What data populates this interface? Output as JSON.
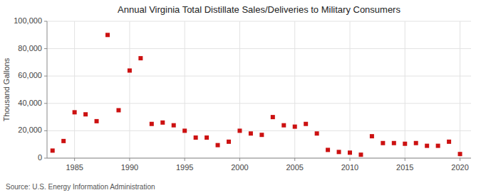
{
  "chart_data": {
    "type": "scatter",
    "title": "Annual Virginia Total Distillate Sales/Deliveries to Military Consumers",
    "y_label": "Thousand Gallons",
    "annotations": [
      "Source: U.S. Energy Information Administration"
    ],
    "x": [
      1983,
      1984,
      1985,
      1986,
      1987,
      1988,
      1989,
      1990,
      1991,
      1992,
      1993,
      1994,
      1995,
      1996,
      1997,
      1998,
      1999,
      2000,
      2001,
      2002,
      2003,
      2004,
      2005,
      2006,
      2007,
      2008,
      2009,
      2010,
      2011,
      2012,
      2013,
      2014,
      2015,
      2016,
      2017,
      2018,
      2019,
      2020
    ],
    "values": [
      5500,
      12500,
      33500,
      32000,
      27000,
      90000,
      35000,
      64000,
      73000,
      25000,
      26000,
      24000,
      20000,
      15000,
      15000,
      9500,
      12000,
      20000,
      18000,
      17000,
      30000,
      24000,
      23000,
      25000,
      18000,
      6000,
      4500,
      4000,
      2500,
      16000,
      11000,
      11000,
      10500,
      11000,
      9000,
      9000,
      12000,
      3000
    ],
    "color": "#cc1111",
    "marker": "square",
    "xlim": [
      1982.5,
      2021
    ],
    "ylim": [
      0,
      100000
    ],
    "xticks": [
      1985,
      1990,
      1995,
      2000,
      2005,
      2010,
      2015,
      2020
    ],
    "yticks": [
      0,
      {
        "value": 20000,
        "label": "20,000"
      },
      {
        "value": 40000,
        "label": "40,000"
      },
      {
        "value": 60000,
        "label": "60,000"
      },
      {
        "value": 80000,
        "label": "80,000"
      },
      {
        "value": 100000,
        "label": "100,000"
      }
    ],
    "grid": true
  }
}
